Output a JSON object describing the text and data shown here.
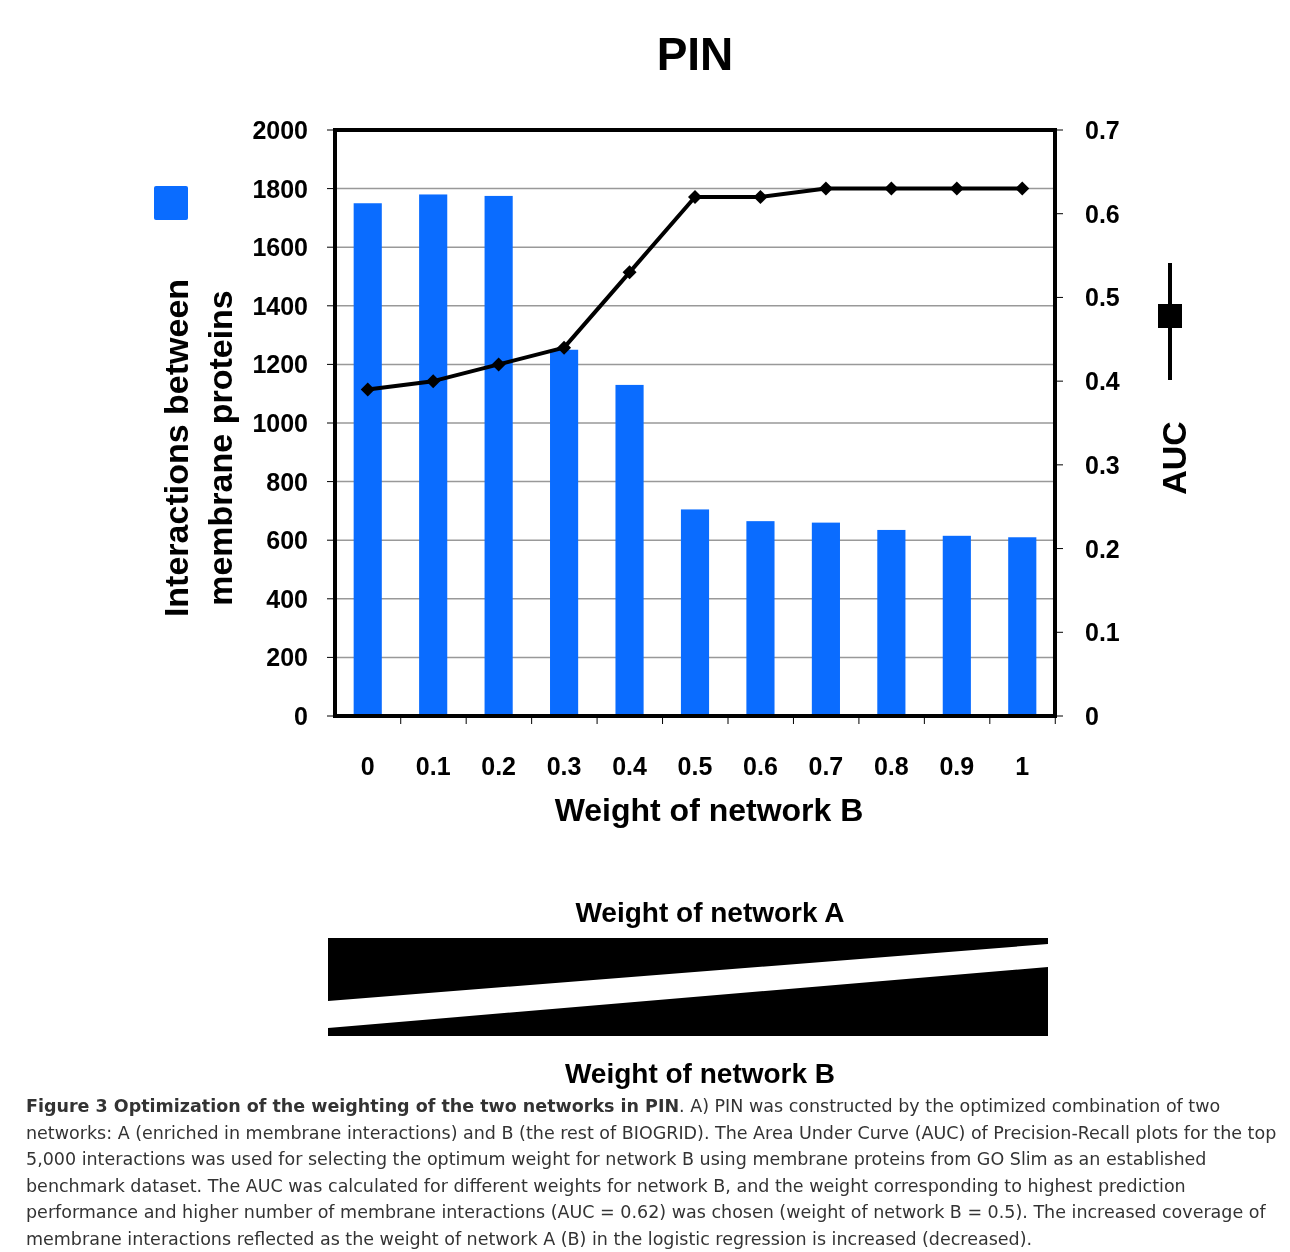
{
  "chart_data": {
    "type": "bar",
    "title": "PIN",
    "xlabel": "Weight of network B",
    "ylabel": "Interactions between membrane proteins",
    "y2label": "AUC",
    "categories": [
      "0",
      "0.1",
      "0.2",
      "0.3",
      "0.4",
      "0.5",
      "0.6",
      "0.7",
      "0.8",
      "0.9",
      "1"
    ],
    "series": [
      {
        "color": "#0a6cff",
        "values": [
          1750,
          1780,
          1775,
          1250,
          1130,
          705,
          665,
          660,
          635,
          615,
          610
        ]
      },
      {
        "type": "line",
        "axis": "y2",
        "color": "#000000",
        "marker": "diamond",
        "line_style": "solid",
        "values": [
          0.39,
          0.4,
          0.42,
          0.44,
          0.53,
          0.62,
          0.62,
          0.63,
          0.63,
          0.63,
          0.63
        ]
      }
    ],
    "ylim": [
      0,
      2000
    ],
    "yticks": [
      0,
      200,
      400,
      600,
      800,
      1000,
      1200,
      1400,
      1600,
      1800,
      2000
    ],
    "y2lim": [
      0,
      0.7
    ],
    "y2ticks": [
      0,
      0.1,
      0.2,
      0.3,
      0.4,
      0.5,
      0.6,
      0.7
    ],
    "grid": "y",
    "annotations": [
      "Weight of network A",
      "Weight of network B",
      "Figure 3 Optimization of the weighting of the two networks in PIN",
      ". A) PIN was constructed by the optimized combination of two networks: A (enriched in membrane interactions) and B (the rest of BIOGRID). The Area Under Curve (AUC) of Precision-Recall plots for the top 5,000 interactions was used for selecting the optimum weight for network B using membrane proteins from GO Slim as an established benchmark dataset. The AUC was calculated for different weights for network B, and the weight corresponding to highest prediction performance and higher number of membrane interactions (AUC = 0.62) was chosen (weight of network B = 0.5). The increased coverage of membrane interactions reflected as the weight of network A (B) in the logistic regression is increased (decreased)."
    ]
  }
}
